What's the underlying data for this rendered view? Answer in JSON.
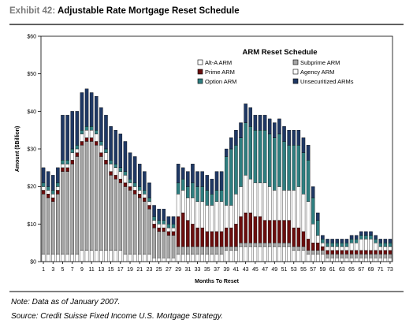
{
  "header": {
    "exhibit_label": "Exhibit 42:",
    "title": "Adjustable Rate Mortgage Reset Schedule"
  },
  "footer": {
    "note": "Note: Data as of January 2007.",
    "source": "Source: Credit Suisse Fixed Income U.S. Mortgage Strategy."
  },
  "chart_data": {
    "type": "bar",
    "stacked": true,
    "title": "ARM Reset Schedule",
    "xlabel": "Months To Reset",
    "ylabel": "Amount ($Billion)",
    "ylim": [
      0,
      60
    ],
    "y_ticks": [
      "$0",
      "$10",
      "$20",
      "$30",
      "$40",
      "$50",
      "$60"
    ],
    "y_tick_values": [
      0,
      10,
      20,
      30,
      40,
      50,
      60
    ],
    "x_tick_labels": [
      "1",
      "3",
      "5",
      "7",
      "9",
      "11",
      "13",
      "15",
      "17",
      "19",
      "21",
      "23",
      "25",
      "27",
      "29",
      "31",
      "33",
      "35",
      "37",
      "39",
      "41",
      "43",
      "45",
      "47",
      "49",
      "51",
      "53",
      "55",
      "57",
      "59",
      "61",
      "63",
      "65",
      "67",
      "69",
      "71",
      "73"
    ],
    "x": [
      1,
      2,
      3,
      4,
      5,
      6,
      7,
      8,
      9,
      10,
      11,
      12,
      13,
      14,
      15,
      16,
      17,
      18,
      19,
      20,
      21,
      22,
      23,
      24,
      25,
      26,
      27,
      28,
      29,
      30,
      31,
      32,
      33,
      34,
      35,
      36,
      37,
      38,
      39,
      40,
      41,
      42,
      43,
      44,
      45,
      46,
      47,
      48,
      49,
      50,
      51,
      52,
      53,
      54,
      55,
      56,
      57,
      58,
      59,
      60,
      61,
      62,
      63,
      64,
      65,
      66,
      67,
      68,
      69,
      70,
      71,
      72,
      73
    ],
    "grid": false,
    "legend_position": "top-right, inside plot",
    "series": [
      {
        "name": "Alt-A ARM",
        "color": "#ffffff",
        "values": [
          2,
          2,
          2,
          2,
          2,
          2,
          2,
          2,
          3,
          3,
          3,
          3,
          3,
          3,
          3,
          3,
          3,
          2,
          2,
          2,
          2,
          2,
          2,
          1,
          1,
          1,
          1,
          1,
          2,
          2,
          2,
          2,
          2,
          2,
          2,
          2,
          2,
          2,
          3,
          3,
          3,
          4,
          4,
          4,
          4,
          4,
          4,
          4,
          4,
          4,
          4,
          4,
          3,
          3,
          3,
          2,
          2,
          2,
          2,
          1,
          1,
          1,
          1,
          1,
          1,
          1,
          1,
          1,
          1,
          1,
          1,
          1,
          1
        ]
      },
      {
        "name": "Subprime ARM",
        "color": "#a6a6a6",
        "values": [
          16,
          15,
          14,
          16,
          22,
          22,
          24,
          26,
          28,
          29,
          29,
          28,
          25,
          23,
          20,
          19,
          18,
          18,
          17,
          16,
          15,
          14,
          12,
          8,
          7,
          7,
          6,
          6,
          2,
          2,
          2,
          2,
          2,
          2,
          2,
          2,
          2,
          2,
          1,
          1,
          1,
          1,
          1,
          1,
          1,
          1,
          1,
          1,
          1,
          1,
          1,
          1,
          1,
          1,
          1,
          1,
          1,
          1,
          1,
          1,
          1,
          1,
          1,
          1,
          1,
          1,
          1,
          1,
          1,
          1,
          1,
          1,
          1
        ]
      },
      {
        "name": "Prime ARM",
        "color": "#6b0e0e",
        "values": [
          1,
          1,
          1,
          1,
          1,
          1,
          1,
          1,
          1,
          1,
          1,
          1,
          1,
          1,
          1,
          1,
          1,
          1,
          1,
          1,
          1,
          1,
          1,
          1,
          1,
          1,
          1,
          1,
          8,
          9,
          7,
          6,
          5,
          5,
          4,
          4,
          4,
          4,
          5,
          5,
          6,
          7,
          8,
          8,
          7,
          7,
          6,
          6,
          6,
          6,
          6,
          6,
          5,
          5,
          4,
          3,
          2,
          2,
          1,
          1,
          1,
          1,
          1,
          1,
          1,
          1,
          1,
          1,
          1,
          1,
          1,
          1,
          1
        ]
      },
      {
        "name": "Agency ARM",
        "color": "#ffffff",
        "values": [
          1,
          1,
          1,
          1,
          1,
          1,
          2,
          1,
          2,
          2,
          2,
          2,
          2,
          2,
          2,
          2,
          2,
          2,
          1,
          1,
          1,
          1,
          1,
          1,
          1,
          1,
          1,
          1,
          6,
          6,
          6,
          7,
          7,
          7,
          7,
          7,
          8,
          8,
          6,
          6,
          8,
          8,
          10,
          9,
          9,
          9,
          10,
          9,
          8,
          9,
          8,
          8,
          10,
          11,
          10,
          10,
          5,
          2,
          1,
          1,
          1,
          1,
          1,
          1,
          2,
          2,
          3,
          3,
          3,
          2,
          1,
          1,
          1
        ]
      },
      {
        "name": "Option ARM",
        "color": "#2e7e80",
        "values": [
          1,
          1,
          1,
          1,
          1,
          1,
          1,
          1,
          1,
          1,
          1,
          1,
          1,
          1,
          1,
          1,
          1,
          1,
          1,
          1,
          1,
          1,
          1,
          1,
          1,
          1,
          1,
          1,
          3,
          3,
          3,
          4,
          4,
          4,
          4,
          3,
          3,
          3,
          13,
          15,
          13,
          13,
          14,
          14,
          14,
          14,
          14,
          14,
          14,
          14,
          13,
          12,
          12,
          11,
          11,
          11,
          7,
          4,
          1,
          1,
          1,
          1,
          1,
          1,
          1,
          1,
          1,
          1,
          1,
          1,
          1,
          1,
          1
        ]
      },
      {
        "name": "Unsecuritized ARMs",
        "color": "#1f3864",
        "values": [
          4,
          4,
          4,
          4,
          12,
          12,
          10,
          9,
          10,
          10,
          9,
          9,
          9,
          9,
          9,
          9,
          9,
          8,
          7,
          7,
          6,
          5,
          4,
          3,
          3,
          3,
          2,
          2,
          5,
          3,
          4,
          5,
          4,
          4,
          4,
          4,
          5,
          5,
          2,
          3,
          4,
          4,
          5,
          5,
          4,
          4,
          4,
          4,
          4,
          4,
          4,
          4,
          4,
          4,
          4,
          4,
          3,
          2,
          1,
          1,
          1,
          1,
          1,
          1,
          1,
          1,
          1,
          1,
          1,
          1,
          1,
          1,
          1
        ]
      }
    ]
  }
}
